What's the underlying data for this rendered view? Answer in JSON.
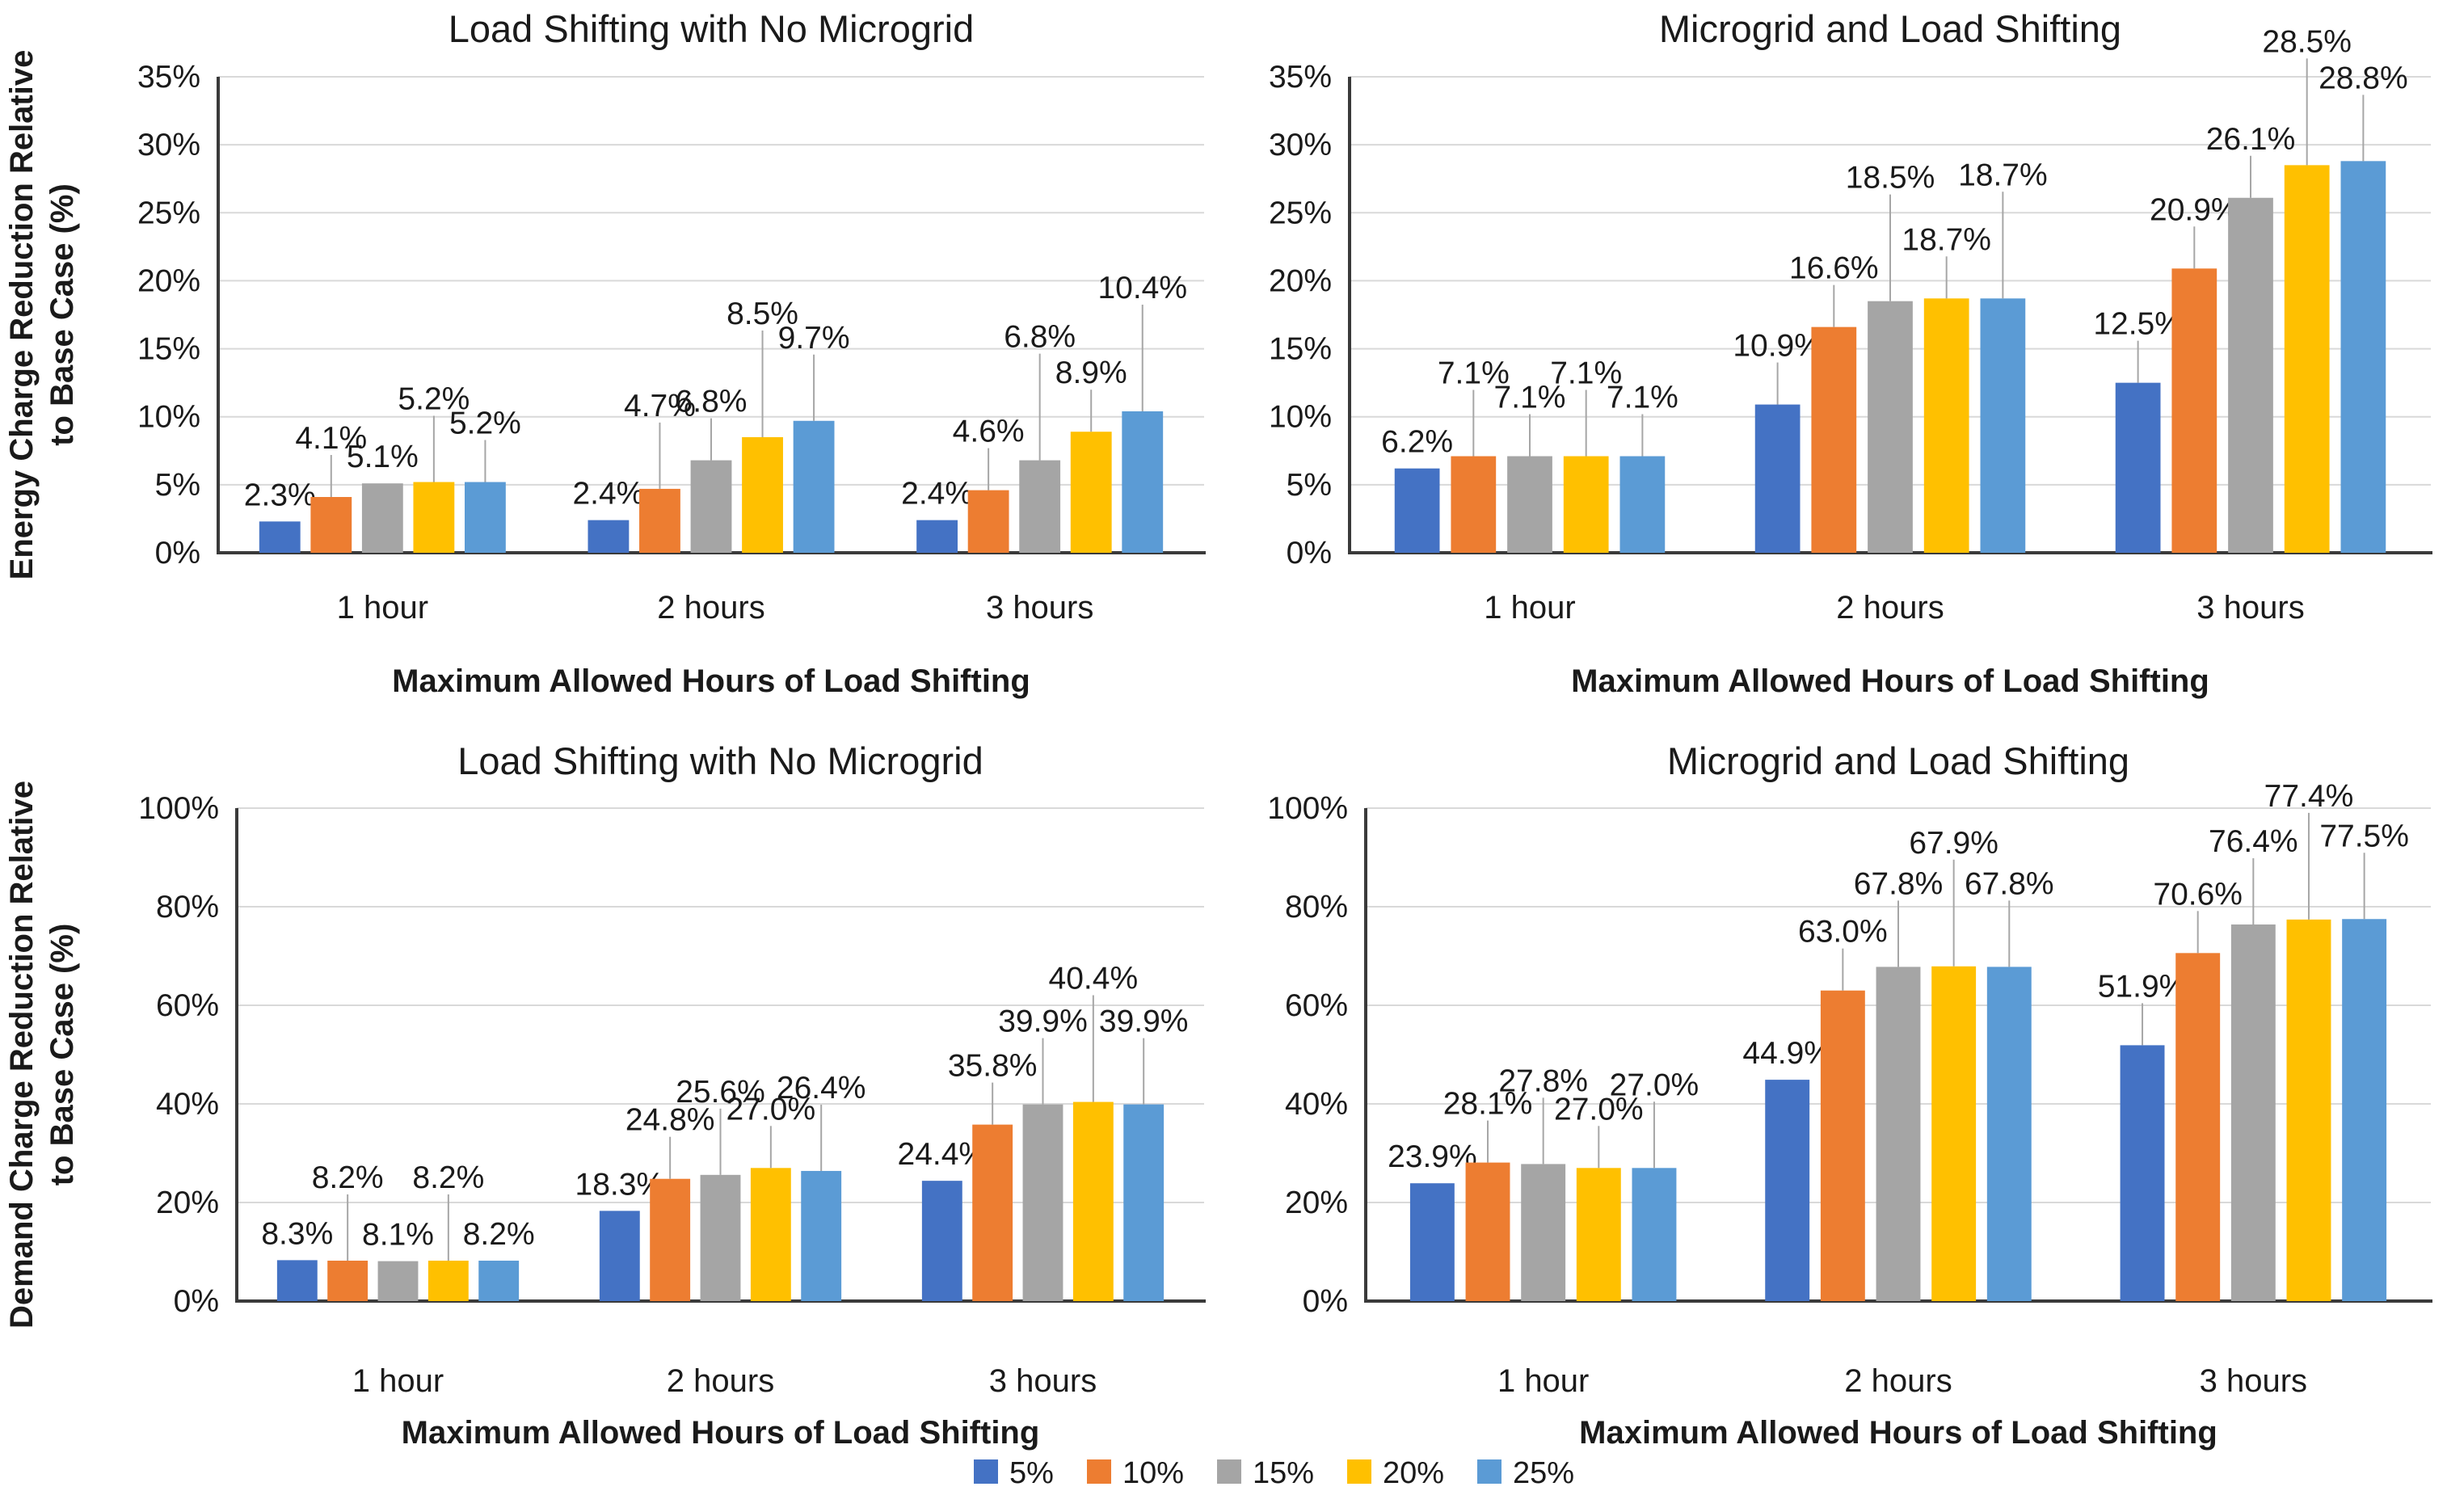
{
  "legend": {
    "position": "bottom-center",
    "items": [
      {
        "label": "5%",
        "color": "#4472C4"
      },
      {
        "label": "10%",
        "color": "#ED7D31"
      },
      {
        "label": "15%",
        "color": "#A5A5A5"
      },
      {
        "label": "20%",
        "color": "#FFC000"
      },
      {
        "label": "25%",
        "color": "#5B9BD5"
      }
    ]
  },
  "colors": {
    "series_blue": "#4472C4",
    "series_orange": "#ED7D31",
    "series_gray": "#A5A5A5",
    "series_gold": "#FFC000",
    "series_lightblue": "#5B9BD5",
    "gridline": "#D9D9D9",
    "axis_line": "#3A3A3A",
    "leader_line": "#A6A6A6",
    "text": "#1a1a1a",
    "title_text": "#262626"
  },
  "chart_data": [
    {
      "type": "bar",
      "position": "top-left",
      "title": "Load Shifting with No Microgrid",
      "ylabel": "Energy Charge Reduction Relative to Base Case (%)",
      "ylabel_lines": [
        "Energy Charge Reduction Relative",
        "to Base Case (%)"
      ],
      "xlabel": "Maximum Allowed Hours of Load Shifting",
      "categories": [
        "1 hour",
        "2 hours",
        "3 hours"
      ],
      "ylim": [
        0,
        35
      ],
      "ytick_step": 5,
      "yticks": [
        "0%",
        "5%",
        "10%",
        "15%",
        "20%",
        "25%",
        "30%",
        "35%"
      ],
      "grid": true,
      "data_labels": true,
      "label_suffix": "%",
      "series": [
        {
          "name": "5%",
          "color": "#4472C4",
          "values": [
            2.3,
            2.4,
            2.4
          ]
        },
        {
          "name": "10%",
          "color": "#ED7D31",
          "values": [
            4.1,
            4.7,
            4.6
          ]
        },
        {
          "name": "15%",
          "color": "#A5A5A5",
          "values": [
            5.1,
            6.8,
            6.8
          ]
        },
        {
          "name": "20%",
          "color": "#FFC000",
          "values": [
            5.2,
            8.5,
            8.9
          ]
        },
        {
          "name": "25%",
          "color": "#5B9BD5",
          "values": [
            5.2,
            9.7,
            10.4
          ]
        }
      ]
    },
    {
      "type": "bar",
      "position": "top-right",
      "title": "Microgrid and Load Shifting",
      "ylabel": "",
      "ylabel_lines": [],
      "xlabel": "Maximum Allowed Hours of Load Shifting",
      "categories": [
        "1 hour",
        "2 hours",
        "3 hours"
      ],
      "ylim": [
        0,
        35
      ],
      "ytick_step": 5,
      "yticks": [
        "0%",
        "5%",
        "10%",
        "15%",
        "20%",
        "25%",
        "30%",
        "35%"
      ],
      "grid": true,
      "data_labels": true,
      "label_suffix": "%",
      "series": [
        {
          "name": "5%",
          "color": "#4472C4",
          "values": [
            6.2,
            10.9,
            12.5
          ]
        },
        {
          "name": "10%",
          "color": "#ED7D31",
          "values": [
            7.1,
            16.6,
            20.9
          ]
        },
        {
          "name": "15%",
          "color": "#A5A5A5",
          "values": [
            7.1,
            18.5,
            26.1
          ]
        },
        {
          "name": "20%",
          "color": "#FFC000",
          "values": [
            7.1,
            18.7,
            28.5
          ]
        },
        {
          "name": "25%",
          "color": "#5B9BD5",
          "values": [
            7.1,
            18.7,
            28.8
          ]
        }
      ]
    },
    {
      "type": "bar",
      "position": "bottom-left",
      "title": "Load Shifting with No Microgrid",
      "ylabel": "Demand Charge Reduction Relative to Base Case (%)",
      "ylabel_lines": [
        "Demand Charge Reduction Relative",
        "to Base Case (%)"
      ],
      "xlabel": "Maximum Allowed Hours of Load Shifting",
      "categories": [
        "1 hour",
        "2 hours",
        "3 hours"
      ],
      "ylim": [
        0,
        100
      ],
      "ytick_step": 20,
      "yticks": [
        "0%",
        "20%",
        "40%",
        "60%",
        "80%",
        "100%"
      ],
      "grid": true,
      "data_labels": true,
      "label_suffix": "%",
      "series": [
        {
          "name": "5%",
          "color": "#4472C4",
          "values": [
            8.3,
            18.3,
            24.4
          ]
        },
        {
          "name": "10%",
          "color": "#ED7D31",
          "values": [
            8.2,
            24.8,
            35.8
          ]
        },
        {
          "name": "15%",
          "color": "#A5A5A5",
          "values": [
            8.1,
            25.6,
            39.9
          ]
        },
        {
          "name": "20%",
          "color": "#FFC000",
          "values": [
            8.2,
            27.0,
            40.4
          ]
        },
        {
          "name": "25%",
          "color": "#5B9BD5",
          "values": [
            8.2,
            26.4,
            39.9
          ]
        }
      ]
    },
    {
      "type": "bar",
      "position": "bottom-right",
      "title": "Microgrid and Load Shifting",
      "ylabel": "",
      "ylabel_lines": [],
      "xlabel": "Maximum Allowed Hours of Load Shifting",
      "categories": [
        "1 hour",
        "2 hours",
        "3 hours"
      ],
      "ylim": [
        0,
        100
      ],
      "ytick_step": 20,
      "yticks": [
        "0%",
        "20%",
        "40%",
        "60%",
        "80%",
        "100%"
      ],
      "grid": true,
      "data_labels": true,
      "label_suffix": "%",
      "series": [
        {
          "name": "5%",
          "color": "#4472C4",
          "values": [
            23.9,
            44.9,
            51.9
          ]
        },
        {
          "name": "10%",
          "color": "#ED7D31",
          "values": [
            28.1,
            63.0,
            70.6
          ]
        },
        {
          "name": "15%",
          "color": "#A5A5A5",
          "values": [
            27.8,
            67.8,
            76.4
          ]
        },
        {
          "name": "20%",
          "color": "#FFC000",
          "values": [
            27.0,
            67.9,
            77.4
          ]
        },
        {
          "name": "25%",
          "color": "#5B9BD5",
          "values": [
            27.0,
            67.8,
            77.5
          ]
        }
      ]
    }
  ]
}
